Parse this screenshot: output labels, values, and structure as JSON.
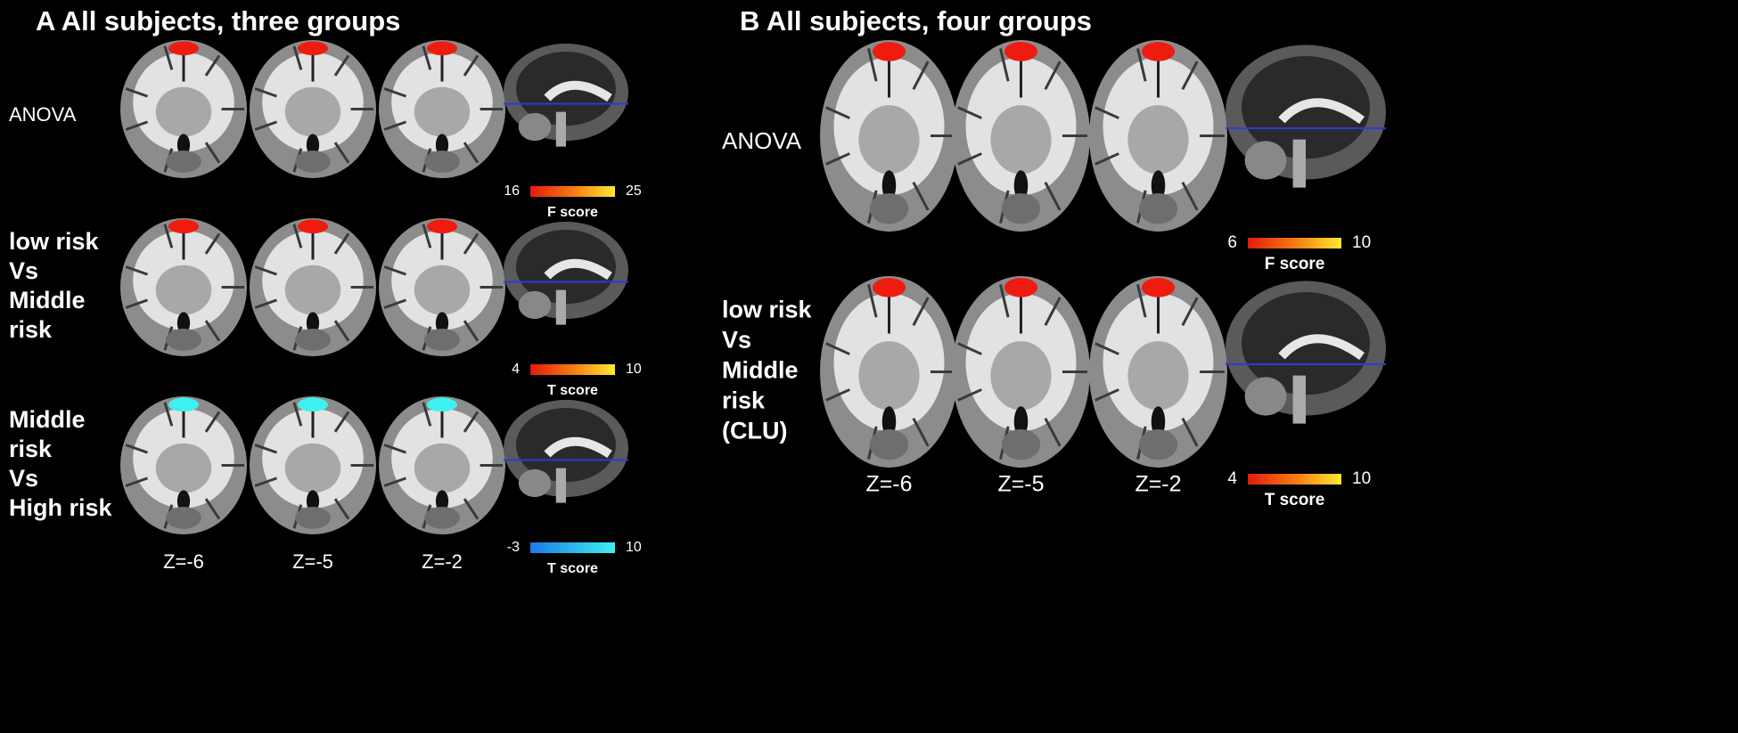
{
  "panels": [
    {
      "title": "A All subjects, three groups",
      "rows": [
        {
          "label": [
            "ANOVA"
          ],
          "colorbar": {
            "min": 16,
            "max": 25,
            "label": "F score"
          }
        },
        {
          "label": [
            "low risk",
            "Vs",
            "Middle",
            "risk"
          ],
          "colorbar": {
            "min": 4,
            "max": 10,
            "label": "T score"
          }
        },
        {
          "label": [
            "Middle",
            "risk",
            "Vs",
            "High risk"
          ],
          "colorbar": {
            "min": -3,
            "max": 10,
            "label": "T score"
          }
        }
      ],
      "slices": [
        "Z=-6",
        "Z=-5",
        "Z=-2"
      ]
    },
    {
      "title": "B All subjects, four groups",
      "rows": [
        {
          "label": [
            "ANOVA"
          ],
          "colorbar": {
            "min": 6,
            "max": 10,
            "label": "F score"
          }
        },
        {
          "label": [
            "low risk",
            "Vs",
            "Middle",
            "risk",
            "(CLU)"
          ],
          "colorbar": {
            "min": 4,
            "max": 10,
            "label": "T score"
          }
        }
      ],
      "slices": [
        "Z=-6",
        "Z=-5",
        "Z=-2"
      ]
    }
  ]
}
